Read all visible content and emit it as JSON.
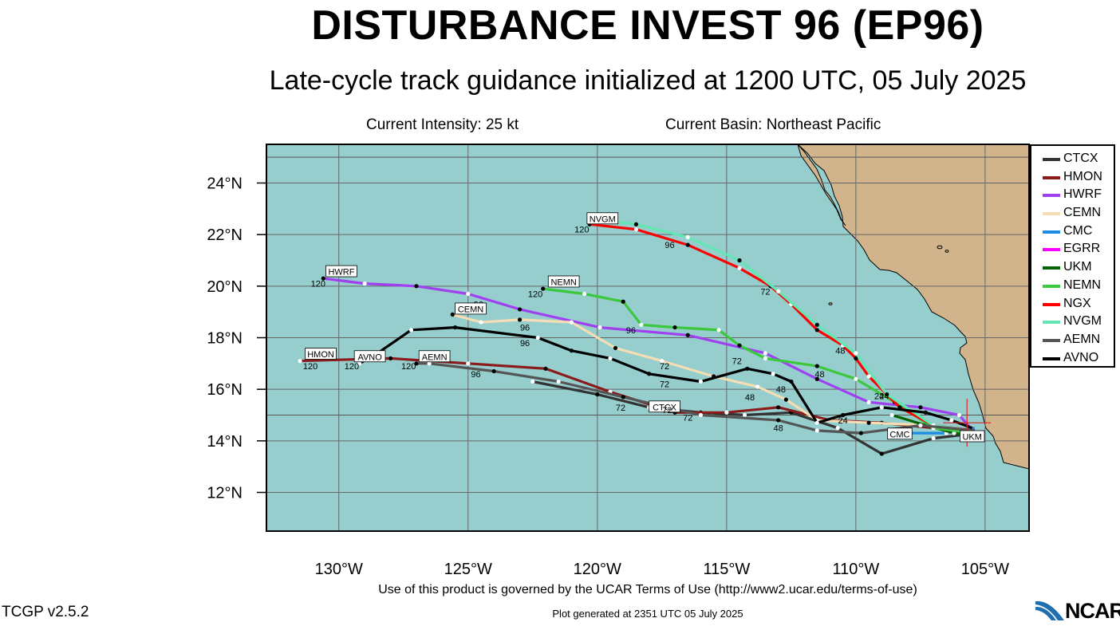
{
  "title": "DISTURBANCE INVEST 96 (EP96)",
  "subtitle": "Late-cycle track guidance initialized at 1200 UTC, 05 July 2025",
  "intensity": "Current Intensity: 25 kt",
  "basin": "Current Basin: Northeast Pacific",
  "terms": "Use of this product is governed by the UCAR Terms of Use (http://www2.ucar.edu/terms-of-use)",
  "version": "TCGP v2.5.2",
  "generated": "Plot generated at 2351 UTC   05 July 2025",
  "logo_text": "NCAR",
  "colors": {
    "ocean": "#96cece",
    "land": "#d2b48c",
    "grid": "#666666"
  },
  "map": {
    "lon_range": [
      -132.8,
      -103.3
    ],
    "lat_range": [
      10.5,
      25.5
    ],
    "lon_ticks": [
      {
        "value": -130,
        "label": "130°W"
      },
      {
        "value": -125,
        "label": "125°W"
      },
      {
        "value": -120,
        "label": "120°W"
      },
      {
        "value": -115,
        "label": "115°W"
      },
      {
        "value": -110,
        "label": "110°W"
      },
      {
        "value": -105,
        "label": "105°W"
      }
    ],
    "lat_ticks": [
      {
        "value": 12,
        "label": "12°N"
      },
      {
        "value": 14,
        "label": "14°N"
      },
      {
        "value": 16,
        "label": "16°N"
      },
      {
        "value": 18,
        "label": "18°N"
      },
      {
        "value": 20,
        "label": "20°N"
      },
      {
        "value": 22,
        "label": "22°N"
      },
      {
        "value": 24,
        "label": "24°N"
      }
    ],
    "current_position": {
      "lon": -105.7,
      "lat": 14.7
    },
    "models": [
      {
        "name": "CTCX",
        "color": "#333333",
        "points": [
          [
            -105.3,
            14.3
          ],
          [
            -107,
            14.1
          ],
          [
            -109,
            13.5
          ],
          [
            -110.7,
            14.5
          ],
          [
            -112.5,
            15.1
          ],
          [
            -114.3,
            15.0
          ],
          [
            -116,
            15.1
          ],
          [
            -118,
            15.3
          ],
          [
            -120,
            15.8
          ],
          [
            -122.5,
            16.3
          ]
        ],
        "end_label": "CTCX",
        "end_label_pos": [
          -117.4,
          15.3
        ],
        "hours": [
          {
            "text": "72",
            "pos": [
              -117.3,
              15.2
            ]
          }
        ]
      },
      {
        "name": "HMON",
        "color": "#8b1a1a",
        "points": [
          [
            -105.3,
            14.3
          ],
          [
            -107,
            14.5
          ],
          [
            -109,
            14.7
          ],
          [
            -111,
            14.8
          ],
          [
            -113,
            15.3
          ],
          [
            -115,
            15.1
          ],
          [
            -117,
            15.1
          ],
          [
            -119.5,
            15.9
          ],
          [
            -122,
            16.8
          ],
          [
            -125,
            17.0
          ],
          [
            -128,
            17.2
          ],
          [
            -131.5,
            17.1
          ]
        ],
        "end_label": "HMON",
        "end_label_pos": [
          -130.7,
          17.35
        ],
        "hours": [
          {
            "text": "120",
            "pos": [
              -131.1,
              16.9
            ]
          },
          {
            "text": "72",
            "pos": [
              -119.1,
              15.3
            ]
          }
        ]
      },
      {
        "name": "HWRF",
        "color": "#a040f0",
        "points": [
          [
            -105.4,
            14.3
          ],
          [
            -106,
            15
          ],
          [
            -107.5,
            15.3
          ],
          [
            -109.5,
            15.5
          ],
          [
            -111.5,
            16.4
          ],
          [
            -113.5,
            17.4
          ],
          [
            -116.5,
            18.1
          ],
          [
            -119.9,
            18.4
          ],
          [
            -123,
            19.1
          ],
          [
            -125,
            19.7
          ],
          [
            -127,
            20.0
          ],
          [
            -129,
            20.1
          ],
          [
            -130.6,
            20.3
          ]
        ],
        "end_label": "HWRF",
        "end_label_pos": [
          -129.9,
          20.55
        ],
        "hours": [
          {
            "text": "120",
            "pos": [
              -130.8,
              20.1
            ]
          },
          {
            "text": "96",
            "pos": [
              -124.6,
              19.3
            ]
          }
        ]
      },
      {
        "name": "CEMN",
        "color": "#f5deb3",
        "points": [
          [
            -105.5,
            14.3
          ],
          [
            -107,
            14.6
          ],
          [
            -109.5,
            14.7
          ],
          [
            -111.5,
            14.8
          ],
          [
            -112.7,
            15.6
          ],
          [
            -113.8,
            16.1
          ],
          [
            -115.5,
            16.5
          ],
          [
            -117.5,
            17.1
          ],
          [
            -119.3,
            17.6
          ],
          [
            -121,
            18.6
          ],
          [
            -123,
            18.7
          ],
          [
            -124.5,
            18.6
          ],
          [
            -125.6,
            18.9
          ]
        ],
        "end_label": "CEMN",
        "end_label_pos": [
          -124.9,
          19.1
        ],
        "hours": [
          {
            "text": "96",
            "pos": [
              -122.8,
              18.4
            ]
          },
          {
            "text": "72",
            "pos": [
              -117.4,
              16.9
            ]
          },
          {
            "text": "48",
            "pos": [
              -114.1,
              15.7
            ]
          }
        ]
      },
      {
        "name": "CMC",
        "color": "#1e8ce6",
        "points": [
          [
            -105.4,
            14.5
          ],
          [
            -106.5,
            14.3
          ],
          [
            -108,
            14.3
          ]
        ],
        "end_label": "CMC",
        "end_label_pos": [
          -108.3,
          14.25
        ],
        "hours": []
      },
      {
        "name": "EGRR",
        "color": "#ff00ff",
        "points": [
          [
            -105.4,
            14.4
          ],
          [
            -106.5,
            14.5
          ]
        ],
        "end_label": "",
        "end_label_pos": [
          0,
          0
        ],
        "hours": []
      },
      {
        "name": "UKM",
        "color": "#006400",
        "points": [
          [
            -105.3,
            14.2
          ],
          [
            -106.2,
            14.3
          ],
          [
            -107.3,
            14.6
          ],
          [
            -108.6,
            15.0
          ]
        ],
        "end_label": "UKM",
        "end_label_pos": [
          -105.5,
          14.15
        ],
        "hours": [
          {
            "text": "24",
            "pos": [
              -108.9,
              15.75
            ]
          }
        ]
      },
      {
        "name": "NEMN",
        "color": "#3cc83c",
        "points": [
          [
            -105.4,
            14.3
          ],
          [
            -107,
            14.5
          ],
          [
            -108.5,
            15.5
          ],
          [
            -110,
            16.4
          ],
          [
            -111.5,
            16.9
          ],
          [
            -113.5,
            17.2
          ],
          [
            -114.5,
            17.7
          ],
          [
            -115.3,
            18.3
          ],
          [
            -117,
            18.4
          ],
          [
            -118.3,
            18.5
          ],
          [
            -119,
            19.4
          ],
          [
            -120.5,
            19.7
          ],
          [
            -122.1,
            19.9
          ]
        ],
        "end_label": "NEMN",
        "end_label_pos": [
          -121.3,
          20.15
        ],
        "hours": [
          {
            "text": "120",
            "pos": [
              -122.4,
              19.7
            ]
          },
          {
            "text": "96",
            "pos": [
              -118.7,
              18.3
            ]
          },
          {
            "text": "72",
            "pos": [
              -114.6,
              17.1
            ]
          },
          {
            "text": "48",
            "pos": [
              -111.4,
              16.6
            ]
          }
        ]
      },
      {
        "name": "NGX",
        "color": "#ff0000",
        "points": [
          [
            -105.4,
            14.4
          ],
          [
            -107,
            14.6
          ],
          [
            -108.3,
            15.3
          ],
          [
            -109.5,
            16.5
          ],
          [
            -110,
            17.2
          ],
          [
            -110.5,
            17.7
          ],
          [
            -111.5,
            18.3
          ],
          [
            -112.5,
            19.3
          ],
          [
            -113.3,
            20.0
          ],
          [
            -114.5,
            20.7
          ],
          [
            -116.5,
            21.6
          ],
          [
            -118.5,
            22.2
          ],
          [
            -120.3,
            22.4
          ]
        ],
        "end_label": "NVGM",
        "end_label_pos": [
          -119.8,
          22.6
        ],
        "hours": [
          {
            "text": "120",
            "pos": [
              -120.6,
              22.2
            ]
          },
          {
            "text": "96",
            "pos": [
              -117.2,
              21.6
            ]
          },
          {
            "text": "72",
            "pos": [
              -113.5,
              19.8
            ]
          },
          {
            "text": "48",
            "pos": [
              -110.6,
              17.5
            ]
          },
          {
            "text": "24",
            "pos": [
              -109.1,
              15.75
            ]
          }
        ]
      },
      {
        "name": "NVGM",
        "color": "#64e6b4",
        "points": [
          [
            -105.5,
            14.4
          ],
          [
            -107,
            14.6
          ],
          [
            -108.8,
            15.8
          ],
          [
            -110,
            17.4
          ],
          [
            -111.5,
            18.5
          ],
          [
            -113,
            19.8
          ],
          [
            -114.5,
            21.0
          ],
          [
            -116.5,
            21.9
          ],
          [
            -118.5,
            22.4
          ],
          [
            -120.2,
            22.6
          ]
        ],
        "end_label": "",
        "end_label_pos": [
          0,
          0
        ],
        "hours": []
      },
      {
        "name": "AEMN",
        "color": "#555555",
        "points": [
          [
            -105.4,
            14.4
          ],
          [
            -107.5,
            14.6
          ],
          [
            -109.8,
            14.3
          ],
          [
            -111.5,
            14.4
          ],
          [
            -113,
            14.8
          ],
          [
            -116,
            15.0
          ],
          [
            -119,
            15.7
          ],
          [
            -121.5,
            16.3
          ],
          [
            -124,
            16.7
          ],
          [
            -126.5,
            17.0
          ],
          [
            -127,
            17.0
          ]
        ],
        "end_label": "AEMN",
        "end_label_pos": [
          -126.3,
          17.25
        ],
        "hours": [
          {
            "text": "120",
            "pos": [
              -127.3,
              16.9
            ]
          },
          {
            "text": "96",
            "pos": [
              -124.7,
              16.6
            ]
          },
          {
            "text": "72",
            "pos": [
              -116.5,
              14.9
            ]
          },
          {
            "text": "48",
            "pos": [
              -113,
              14.5
            ]
          }
        ]
      },
      {
        "name": "AVNO",
        "color": "#000000",
        "points": [
          [
            -105.5,
            14.5
          ],
          [
            -106.3,
            14.8
          ],
          [
            -107.3,
            15.1
          ],
          [
            -109,
            15.3
          ],
          [
            -110.5,
            15.0
          ],
          [
            -111.5,
            14.7
          ],
          [
            -112.5,
            16.3
          ],
          [
            -113.2,
            16.6
          ],
          [
            -114.2,
            16.8
          ],
          [
            -116,
            16.3
          ],
          [
            -118,
            16.6
          ],
          [
            -119.5,
            17.2
          ],
          [
            -121,
            17.5
          ],
          [
            -122.3,
            18.0
          ],
          [
            -125.5,
            18.4
          ],
          [
            -127.2,
            18.3
          ],
          [
            -128.5,
            17.4
          ],
          [
            -129.2,
            17.0
          ]
        ],
        "end_label": "AVNO",
        "end_label_pos": [
          -128.8,
          17.25
        ],
        "hours": [
          {
            "text": "120",
            "pos": [
              -129.5,
              16.9
            ]
          },
          {
            "text": "96",
            "pos": [
              -122.8,
              17.8
            ]
          },
          {
            "text": "72",
            "pos": [
              -117.4,
              16.2
            ]
          },
          {
            "text": "48",
            "pos": [
              -112.9,
              16.0
            ]
          },
          {
            "text": "24",
            "pos": [
              -110.5,
              14.8
            ]
          }
        ]
      }
    ]
  }
}
